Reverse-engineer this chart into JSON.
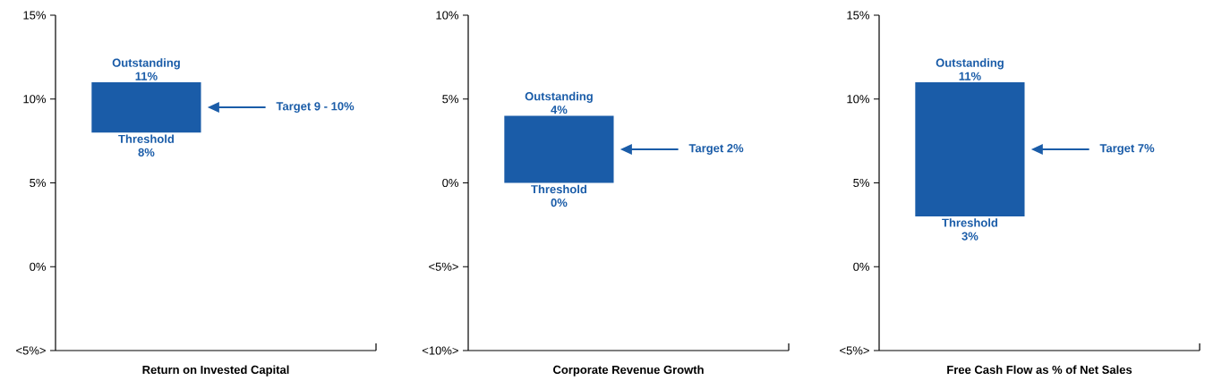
{
  "chart_data": [
    {
      "type": "bar",
      "xlabel": "Return on Invested Capital",
      "categories": [
        null
      ],
      "base": [
        8
      ],
      "values": [
        3
      ],
      "color": "#1a5ca8",
      "ylim": [
        -5,
        15
      ],
      "yticks": [
        {
          "value": -5,
          "label": "<5%>"
        },
        {
          "value": 0,
          "label": "0%"
        },
        {
          "value": 5,
          "label": "5%"
        },
        {
          "value": 10,
          "label": "10%"
        },
        {
          "value": 15,
          "label": "15%"
        }
      ],
      "annotations": [
        {
          "text": "Outstanding 11%",
          "y": 11
        },
        {
          "text": "Threshold 8%",
          "y": 8
        }
      ],
      "ref_lines": [
        {
          "axis": "y",
          "value": 9.5,
          "label": "Target 9 - 10%"
        }
      ]
    },
    {
      "type": "bar",
      "xlabel": "Corporate Revenue Growth",
      "categories": [
        null
      ],
      "base": [
        0
      ],
      "values": [
        4
      ],
      "color": "#1a5ca8",
      "ylim": [
        -10,
        10
      ],
      "yticks": [
        {
          "value": -10,
          "label": "<10%>"
        },
        {
          "value": -5,
          "label": "<5%>"
        },
        {
          "value": 0,
          "label": "0%"
        },
        {
          "value": 5,
          "label": "5%"
        },
        {
          "value": 10,
          "label": "10%"
        }
      ],
      "annotations": [
        {
          "text": "Outstanding 4%",
          "y": 4
        },
        {
          "text": "Threshold 0%",
          "y": 0
        }
      ],
      "ref_lines": [
        {
          "axis": "y",
          "value": 2,
          "label": "Target 2%"
        }
      ]
    },
    {
      "type": "bar",
      "xlabel": "Free Cash Flow as % of Net Sales",
      "categories": [
        null
      ],
      "base": [
        3
      ],
      "values": [
        8
      ],
      "color": "#1a5ca8",
      "ylim": [
        -5,
        15
      ],
      "yticks": [
        {
          "value": -5,
          "label": "<5%>"
        },
        {
          "value": 0,
          "label": "0%"
        },
        {
          "value": 5,
          "label": "5%"
        },
        {
          "value": 10,
          "label": "10%"
        },
        {
          "value": 15,
          "label": "15%"
        }
      ],
      "annotations": [
        {
          "text": "Outstanding 11%",
          "y": 11
        },
        {
          "text": "Threshold 3%",
          "y": 3
        }
      ],
      "ref_lines": [
        {
          "axis": "y",
          "value": 7,
          "label": "Target 7%"
        }
      ]
    }
  ]
}
